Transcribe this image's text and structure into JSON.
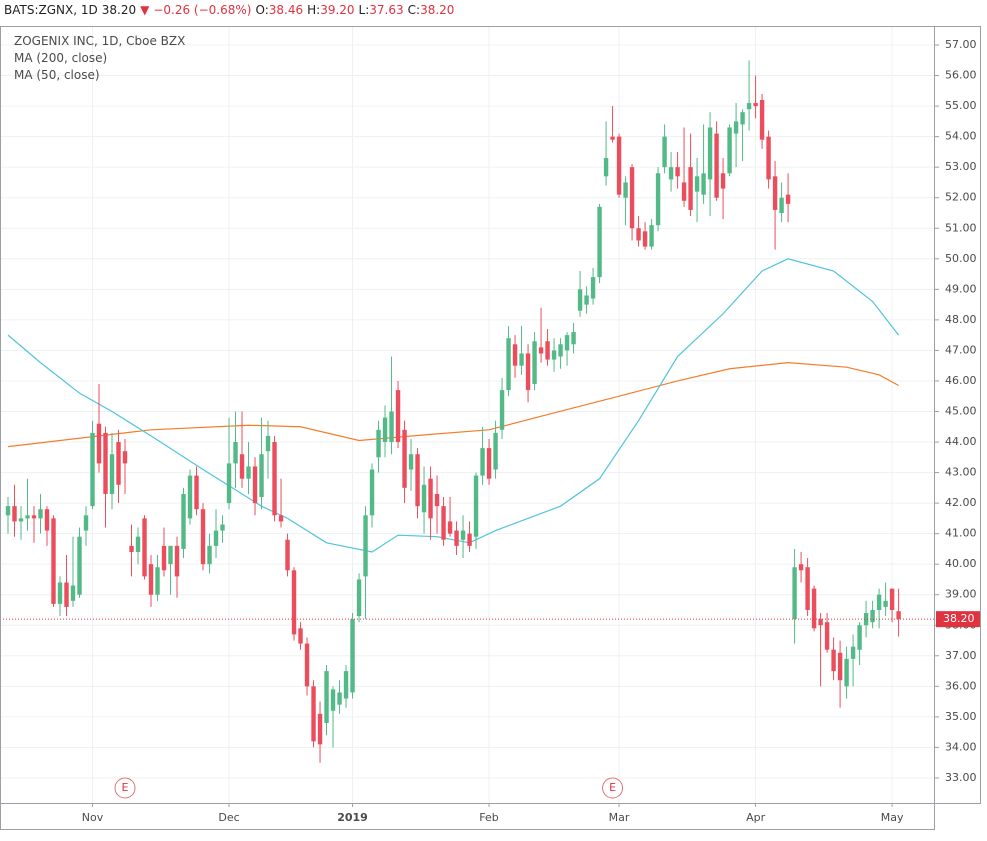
{
  "chart_data": {
    "type": "candlestick",
    "header": [
      {
        "text": "BATS:ZGNX, 1D",
        "color": "#222222"
      },
      {
        "text": "38.20",
        "color": "#222222"
      },
      {
        "text": "▼",
        "color": "#e0323f"
      },
      {
        "text": "−0.26 (−0.68%)",
        "color": "#e0323f"
      },
      {
        "text": "O:",
        "color": "#222222"
      },
      {
        "text": "38.46",
        "color": "#e0323f"
      },
      {
        "text": "H:",
        "color": "#222222"
      },
      {
        "text": "39.20",
        "color": "#e0323f"
      },
      {
        "text": "L:",
        "color": "#222222"
      },
      {
        "text": "37.63",
        "color": "#e0323f"
      },
      {
        "text": "C:",
        "color": "#222222"
      },
      {
        "text": "38.20",
        "color": "#e0323f"
      }
    ],
    "title": "ZOGENIX INC, 1D, Cboe BZX",
    "up_color": "#53b987",
    "down_color": "#eb4d5c",
    "open": [
      41.6,
      41.9,
      41.4,
      41.5,
      41.6,
      41.5,
      41.8,
      41.5,
      38.7,
      39.4,
      38.8,
      39.0,
      41.1,
      41.9,
      44.6,
      44.3,
      42.3,
      44.0,
      43.7,
      40.6,
      40.4,
      41.5,
      40.0,
      39.0,
      40.6,
      40.0,
      40.6,
      40.5,
      41.5,
      42.9,
      41.8,
      40.0,
      40.6,
      41.1,
      42.0,
      43.3,
      43.6,
      42.8,
      43.2,
      42.2,
      43.7,
      44.0,
      41.6,
      40.8,
      39.8,
      37.9,
      37.4,
      36.0,
      35.1,
      34.8,
      35.2,
      35.4,
      35.6,
      35.8,
      38.3,
      39.6,
      41.6,
      43.5,
      44.0,
      44.0,
      45.7,
      44.4,
      43.1,
      43.6,
      41.7,
      42.8,
      42.3,
      41.9,
      41.4,
      41.1,
      40.8,
      41.0,
      40.9,
      42.9,
      43.8,
      43.1,
      44.4,
      45.7,
      47.2,
      46.5,
      46.9,
      45.9,
      47.1,
      47.3,
      46.7,
      46.8,
      47.0,
      47.2,
      48.3,
      48.5,
      48.7,
      49.4,
      52.7,
      54.0,
      54.0,
      52.0,
      53.0,
      51.0,
      50.9,
      50.4,
      51.1,
      53.0,
      52.6,
      53.0,
      52.5,
      53.0,
      52.2,
      52.1,
      52.6,
      54.1,
      52.8,
      52.8,
      54.1,
      54.4,
      54.9,
      55.1,
      55.2,
      54.0,
      52.7,
      51.5,
      52.1,
      38.2,
      40.0,
      39.9,
      39.2,
      38.2,
      38.1,
      37.2,
      37.1,
      36.0,
      36.9,
      37.2,
      38.0,
      38.1,
      38.5,
      38.6,
      39.2,
      38.46
    ],
    "high": [
      42.2,
      42.6,
      41.9,
      42.8,
      41.9,
      42.3,
      41.9,
      41.6,
      39.6,
      40.3,
      40.9,
      41.2,
      41.9,
      44.7,
      45.9,
      44.5,
      44.3,
      44.4,
      44.1,
      41.3,
      41.2,
      41.6,
      40.3,
      40.3,
      41.2,
      40.6,
      40.9,
      42.5,
      43.1,
      43.2,
      42.0,
      41.0,
      41.8,
      41.6,
      44.8,
      45.0,
      45.0,
      44.0,
      43.5,
      44.8,
      44.7,
      44.2,
      42.8,
      41.0,
      39.9,
      38.1,
      37.6,
      36.2,
      35.5,
      36.7,
      36.0,
      36.2,
      36.7,
      38.4,
      39.7,
      41.9,
      43.3,
      44.7,
      45.2,
      46.8,
      46.0,
      44.7,
      44.1,
      43.8,
      43.2,
      43.2,
      42.9,
      42.2,
      42.2,
      41.4,
      41.6,
      41.4,
      43.0,
      44.5,
      44.1,
      44.7,
      46.1,
      47.8,
      47.5,
      47.8,
      47.2,
      47.6,
      48.4,
      47.7,
      47.4,
      47.4,
      47.6,
      47.9,
      49.6,
      49.1,
      49.7,
      51.8,
      54.5,
      55.0,
      54.1,
      52.7,
      53.1,
      51.4,
      51.2,
      51.3,
      53.0,
      54.4,
      53.5,
      53.5,
      54.3,
      54.1,
      53.3,
      54.4,
      54.8,
      54.5,
      53.3,
      54.4,
      55.1,
      54.9,
      56.5,
      56.0,
      55.4,
      54.2,
      53.2,
      52.5,
      52.8,
      40.5,
      40.4,
      40.2,
      39.3,
      38.4,
      38.4,
      37.6,
      37.5,
      37.3,
      37.7,
      38.1,
      38.8,
      38.8,
      39.2,
      39.4,
      39.2,
      39.2
    ],
    "low": [
      41.0,
      40.9,
      40.8,
      41.1,
      40.7,
      41.0,
      40.6,
      38.6,
      38.3,
      38.3,
      38.6,
      38.9,
      40.6,
      41.8,
      43.0,
      41.2,
      41.8,
      42.0,
      42.3,
      39.6,
      40.0,
      39.5,
      38.6,
      38.8,
      39.6,
      39.0,
      38.9,
      40.2,
      41.3,
      41.6,
      39.8,
      39.7,
      40.2,
      40.7,
      41.8,
      42.5,
      42.5,
      42.3,
      41.6,
      41.8,
      42.8,
      41.4,
      41.2,
      39.6,
      37.5,
      37.2,
      35.7,
      34.0,
      33.5,
      34.4,
      34.0,
      35.1,
      35.3,
      35.6,
      38.1,
      38.2,
      41.2,
      43.0,
      43.5,
      43.6,
      43.8,
      42.0,
      42.4,
      41.5,
      41.0,
      40.8,
      41.0,
      40.6,
      40.9,
      40.3,
      40.2,
      40.4,
      40.5,
      42.6,
      42.6,
      42.8,
      44.1,
      45.5,
      46.1,
      46.2,
      45.3,
      45.7,
      46.6,
      46.5,
      46.3,
      46.4,
      46.5,
      46.9,
      48.1,
      48.2,
      48.5,
      49.2,
      52.4,
      53.8,
      52.0,
      51.1,
      50.6,
      50.4,
      50.3,
      50.3,
      50.9,
      52.8,
      52.2,
      52.3,
      51.7,
      51.4,
      51.2,
      51.8,
      51.4,
      51.9,
      51.3,
      52.7,
      53.0,
      53.2,
      54.2,
      54.6,
      53.6,
      52.3,
      50.3,
      51.2,
      51.2,
      37.4,
      39.4,
      38.3,
      37.8,
      36.0,
      37.1,
      36.2,
      35.3,
      35.6,
      36.0,
      36.7,
      37.6,
      37.9,
      37.9,
      38.3,
      38.1,
      37.63
    ],
    "close": [
      41.9,
      41.4,
      41.5,
      41.6,
      41.5,
      41.8,
      41.1,
      38.7,
      39.4,
      38.6,
      39.3,
      40.9,
      41.6,
      44.3,
      43.3,
      42.3,
      43.6,
      42.6,
      43.3,
      40.4,
      40.9,
      39.6,
      39.0,
      39.9,
      39.8,
      40.6,
      39.6,
      42.3,
      42.9,
      41.8,
      40.0,
      40.6,
      41.1,
      41.3,
      43.3,
      44.0,
      42.8,
      43.2,
      42.0,
      43.6,
      44.2,
      41.6,
      41.4,
      39.8,
      37.7,
      37.4,
      36.0,
      34.2,
      34.1,
      36.5,
      35.9,
      35.8,
      36.5,
      38.2,
      39.5,
      41.6,
      43.1,
      44.4,
      44.8,
      45.0,
      44.0,
      42.5,
      43.6,
      41.9,
      42.6,
      41.5,
      41.9,
      40.8,
      41.0,
      40.6,
      41.1,
      40.6,
      42.9,
      43.8,
      42.8,
      44.3,
      45.7,
      47.4,
      46.5,
      46.9,
      45.7,
      47.3,
      46.9,
      46.7,
      47.0,
      47.2,
      47.5,
      47.6,
      49.0,
      48.8,
      49.4,
      51.7,
      53.3,
      53.9,
      52.1,
      52.5,
      51.0,
      50.6,
      50.4,
      51.1,
      52.8,
      54.0,
      53.0,
      52.7,
      51.9,
      51.6,
      52.7,
      52.8,
      54.3,
      52.0,
      52.3,
      54.3,
      54.5,
      54.8,
      55.1,
      55.0,
      53.9,
      52.6,
      51.6,
      52.0,
      51.8,
      39.9,
      39.8,
      38.5,
      37.9,
      38.0,
      37.2,
      36.5,
      36.2,
      36.9,
      37.3,
      38.0,
      38.4,
      38.5,
      39.0,
      38.8,
      38.5,
      38.2
    ],
    "lines": [
      {
        "name": "MA (200, close)",
        "color": "#f57d2a",
        "x": [
          0,
          22,
          37,
          45,
          54,
          65,
          74,
          83,
          94,
          103,
          111,
          120,
          129,
          134,
          137
        ],
        "values": [
          43.85,
          44.4,
          44.55,
          44.5,
          44.05,
          44.25,
          44.4,
          44.9,
          45.5,
          46.0,
          46.4,
          46.6,
          46.45,
          46.2,
          45.85
        ]
      },
      {
        "name": "MA (50, close)",
        "color": "#4fc3dc",
        "x": [
          0,
          5,
          11,
          16,
          22,
          30,
          39,
          43,
          49,
          56,
          60,
          66,
          71,
          75,
          85,
          91,
          97,
          103,
          110,
          116,
          120,
          127,
          133,
          137
        ],
        "values": [
          47.5,
          46.6,
          45.6,
          45.0,
          44.2,
          43.1,
          41.9,
          41.5,
          40.7,
          40.4,
          40.95,
          40.9,
          40.7,
          41.1,
          41.9,
          42.8,
          44.7,
          46.8,
          48.2,
          49.6,
          50.0,
          49.6,
          48.6,
          47.5
        ]
      }
    ],
    "events": [
      {
        "x": 18,
        "label": "E"
      },
      {
        "x": 93,
        "label": "E"
      }
    ],
    "last_price": {
      "value": 38.2,
      "label": "38.20"
    },
    "last_color": "#e0323f",
    "xlim": [
      -1.23,
      142.6
    ],
    "xticks": [
      {
        "value": 13,
        "label": "Nov"
      },
      {
        "value": 34,
        "label": "Dec"
      },
      {
        "value": 53,
        "label": "2019"
      },
      {
        "value": 74,
        "label": "Feb"
      },
      {
        "value": 94,
        "label": "Mar"
      },
      {
        "value": 115,
        "label": "Apr"
      },
      {
        "value": 136,
        "label": "May"
      }
    ],
    "ylim": [
      32.18,
      57.59
    ],
    "yticks": [
      {
        "value": 33,
        "label": "33.00"
      },
      {
        "value": 34,
        "label": "34.00"
      },
      {
        "value": 35,
        "label": "35.00"
      },
      {
        "value": 36,
        "label": "36.00"
      },
      {
        "value": 37,
        "label": "37.00"
      },
      {
        "value": 38,
        "label": "38.00"
      },
      {
        "value": 39,
        "label": "39.00"
      },
      {
        "value": 40,
        "label": "40.00"
      },
      {
        "value": 41,
        "label": "41.00"
      },
      {
        "value": 42,
        "label": "42.00"
      },
      {
        "value": 43,
        "label": "43.00"
      },
      {
        "value": 44,
        "label": "44.00"
      },
      {
        "value": 45,
        "label": "45.00"
      },
      {
        "value": 46,
        "label": "46.00"
      },
      {
        "value": 47,
        "label": "47.00"
      },
      {
        "value": 48,
        "label": "48.00"
      },
      {
        "value": 49,
        "label": "49.00"
      },
      {
        "value": 50,
        "label": "50.00"
      },
      {
        "value": 51,
        "label": "51.00"
      },
      {
        "value": 52,
        "label": "52.00"
      },
      {
        "value": 53,
        "label": "53.00"
      },
      {
        "value": 54,
        "label": "54.00"
      },
      {
        "value": 55,
        "label": "55.00"
      },
      {
        "value": 56,
        "label": "56.00"
      },
      {
        "value": 57,
        "label": "57.00"
      }
    ],
    "grid": true
  }
}
